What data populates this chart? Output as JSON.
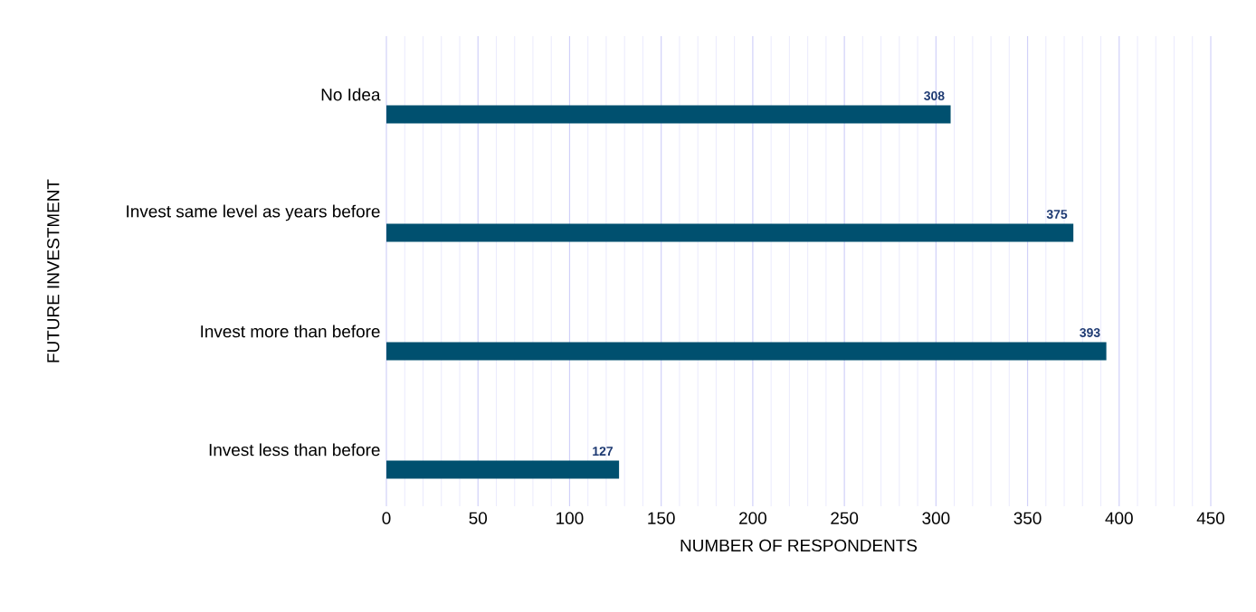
{
  "chart_data": {
    "type": "bar",
    "orientation": "horizontal",
    "xlabel": "NUMBER OF RESPONDENTS",
    "ylabel": "FUTURE INVESTMENT",
    "categories": [
      "No Idea",
      "Invest same level as years before",
      "Invest more than before",
      "Invest less than before"
    ],
    "values": [
      308,
      375,
      393,
      127
    ],
    "color": "#00506f",
    "data_labels": true,
    "xlim": [
      0,
      450
    ],
    "xticks": [
      0,
      50,
      100,
      150,
      200,
      250,
      300,
      350,
      400,
      450
    ],
    "grid": "x"
  }
}
